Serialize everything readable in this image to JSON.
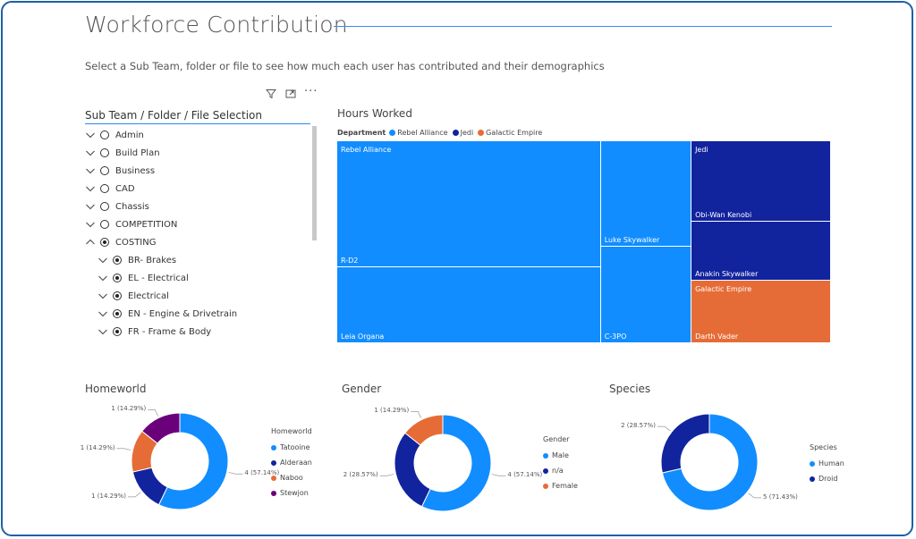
{
  "header": {
    "title": "Workforce Contribution",
    "subtitle": "Select a Sub Team, folder or file to see how much each user has contributed and their demographics"
  },
  "icons": {
    "filter": "filter-icon",
    "focus": "focus-mode-icon",
    "more": "more-options-icon"
  },
  "slicer": {
    "title": "Sub Team / Folder / File Selection",
    "items": [
      {
        "label": "Admin",
        "expanded": false,
        "selected": false,
        "level": 0
      },
      {
        "label": "Build Plan",
        "expanded": false,
        "selected": false,
        "level": 0
      },
      {
        "label": "Business",
        "expanded": false,
        "selected": false,
        "level": 0
      },
      {
        "label": "CAD",
        "expanded": false,
        "selected": false,
        "level": 0
      },
      {
        "label": "Chassis",
        "expanded": false,
        "selected": false,
        "level": 0
      },
      {
        "label": "COMPETITION",
        "expanded": false,
        "selected": false,
        "level": 0
      },
      {
        "label": "COSTING",
        "expanded": true,
        "selected": true,
        "level": 0
      },
      {
        "label": "BR- Brakes",
        "expanded": false,
        "selected": true,
        "level": 1
      },
      {
        "label": "EL - Electrical",
        "expanded": false,
        "selected": true,
        "level": 1
      },
      {
        "label": "Electrical",
        "expanded": false,
        "selected": true,
        "level": 1
      },
      {
        "label": "EN - Engine & Drivetrain",
        "expanded": false,
        "selected": true,
        "level": 1
      },
      {
        "label": "FR - Frame & Body",
        "expanded": false,
        "selected": true,
        "level": 1
      }
    ]
  },
  "colors": {
    "rebel": "#118dff",
    "jedi": "#12239e",
    "empire": "#e66c37",
    "stewjon": "#6b007b",
    "lightblue": "#118dff",
    "darkblue": "#12239e",
    "orange": "#e66c37",
    "purple": "#6b007b"
  },
  "chart_data": [
    {
      "type": "treemap",
      "title": "Hours Worked",
      "legend_title": "Department",
      "legend_position": "top-left",
      "groups": [
        {
          "name": "Rebel Alliance",
          "color": "#118dff",
          "items": [
            {
              "name": "R-D2",
              "value": 118
            },
            {
              "name": "Leia Organa",
              "value": 71
            },
            {
              "name": "Luke Skywalker",
              "value": 34
            },
            {
              "name": "C-3PO",
              "value": 31
            }
          ]
        },
        {
          "name": "Jedi",
          "color": "#12239e",
          "items": [
            {
              "name": "Obi-Wan Kenobi",
              "value": 40
            },
            {
              "name": "Anakin Skywalker",
              "value": 29
            }
          ]
        },
        {
          "name": "Galactic Empire",
          "color": "#e66c37",
          "items": [
            {
              "name": "Darth Vader",
              "value": 31
            }
          ]
        }
      ]
    },
    {
      "type": "donut",
      "title": "Homeworld",
      "legend_title": "Homeworld",
      "legend_position": "right",
      "slices": [
        {
          "name": "Tatooine",
          "value": 4,
          "label": "4 (57.14%)",
          "color": "#118dff"
        },
        {
          "name": "Alderaan",
          "value": 1,
          "label": "1 (14.29%)",
          "color": "#12239e"
        },
        {
          "name": "Naboo",
          "value": 1,
          "label": "1 (14.29%)",
          "color": "#e66c37"
        },
        {
          "name": "Stewjon",
          "value": 1,
          "label": "1 (14.29%)",
          "color": "#6b007b"
        }
      ]
    },
    {
      "type": "donut",
      "title": "Gender",
      "legend_title": "Gender",
      "legend_position": "right",
      "slices": [
        {
          "name": "Male",
          "value": 4,
          "label": "4 (57.14%)",
          "color": "#118dff"
        },
        {
          "name": "n/a",
          "value": 2,
          "label": "2 (28.57%)",
          "color": "#12239e"
        },
        {
          "name": "Female",
          "value": 1,
          "label": "1 (14.29%)",
          "color": "#e66c37"
        }
      ]
    },
    {
      "type": "donut",
      "title": "Species",
      "legend_title": "Species",
      "legend_position": "right",
      "slices": [
        {
          "name": "Human",
          "value": 5,
          "label": "5 (71.43%)",
          "color": "#118dff"
        },
        {
          "name": "Droid",
          "value": 2,
          "label": "2 (28.57%)",
          "color": "#12239e"
        }
      ]
    }
  ]
}
